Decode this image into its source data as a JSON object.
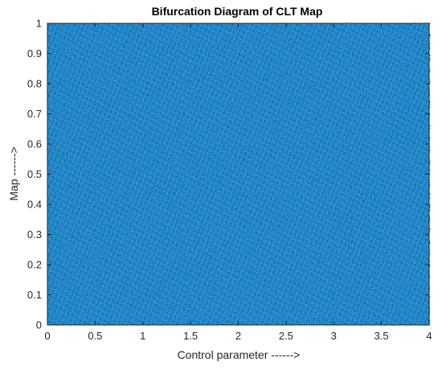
{
  "chart_data": {
    "type": "scatter",
    "title": "Bifurcation Diagram of CLT Map",
    "xlabel": "Control parameter ------>",
    "ylabel": "Map ------>",
    "xlim": [
      0,
      4
    ],
    "ylim": [
      0,
      1
    ],
    "xticks": [
      "0",
      "0.5",
      "1",
      "1.5",
      "2",
      "2.5",
      "3",
      "3.5",
      "4"
    ],
    "yticks": [
      "0",
      "0.1",
      "0.2",
      "0.3",
      "0.4",
      "0.5",
      "0.6",
      "0.7",
      "0.8",
      "0.9",
      "1"
    ],
    "grid": false,
    "legend": "none",
    "point_color": "#0072BD",
    "distribution": "uniform dense coverage of the full plot area over x in [0, 4] and y in [0, 1]"
  }
}
